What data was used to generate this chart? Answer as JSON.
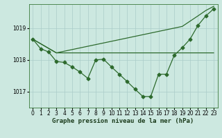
{
  "background_color": "#cce8e0",
  "plot_bg_color": "#cce8e0",
  "line_color": "#2d6a2d",
  "marker_color": "#2d6a2d",
  "xlabel": "Graphe pression niveau de la mer (hPa)",
  "ylim": [
    1016.5,
    1019.75
  ],
  "xlim": [
    -0.5,
    23.5
  ],
  "yticks": [
    1017,
    1018,
    1019
  ],
  "xticks": [
    0,
    1,
    2,
    3,
    4,
    5,
    6,
    7,
    8,
    9,
    10,
    11,
    12,
    13,
    14,
    15,
    16,
    17,
    18,
    19,
    20,
    21,
    22,
    23
  ],
  "series1_x": [
    0,
    1,
    2,
    3,
    4,
    5,
    6,
    7,
    8,
    9,
    10,
    11,
    12,
    13,
    14,
    15,
    16,
    17,
    18,
    19,
    20,
    21,
    22,
    23
  ],
  "series1_y": [
    1018.65,
    1018.35,
    1018.25,
    1017.95,
    1017.92,
    1017.78,
    1017.62,
    1017.42,
    1018.0,
    1018.02,
    1017.78,
    1017.55,
    1017.32,
    1017.08,
    1016.85,
    1016.85,
    1017.55,
    1017.55,
    1018.15,
    1018.38,
    1018.65,
    1019.08,
    1019.38,
    1019.6
  ],
  "series2_x": [
    0,
    3,
    19,
    23
  ],
  "series2_y": [
    1018.65,
    1018.22,
    1018.22,
    1018.22
  ],
  "series3_x": [
    0,
    3,
    19,
    21,
    22,
    23
  ],
  "series3_y": [
    1018.65,
    1018.22,
    1019.05,
    1019.38,
    1019.55,
    1019.68
  ],
  "grid_color": "#aaccc8",
  "tick_fontsize": 5.5,
  "label_fontsize": 6.5,
  "marker_size": 2.5,
  "lw1": 0.9,
  "lw2": 0.9,
  "lw3": 0.9
}
